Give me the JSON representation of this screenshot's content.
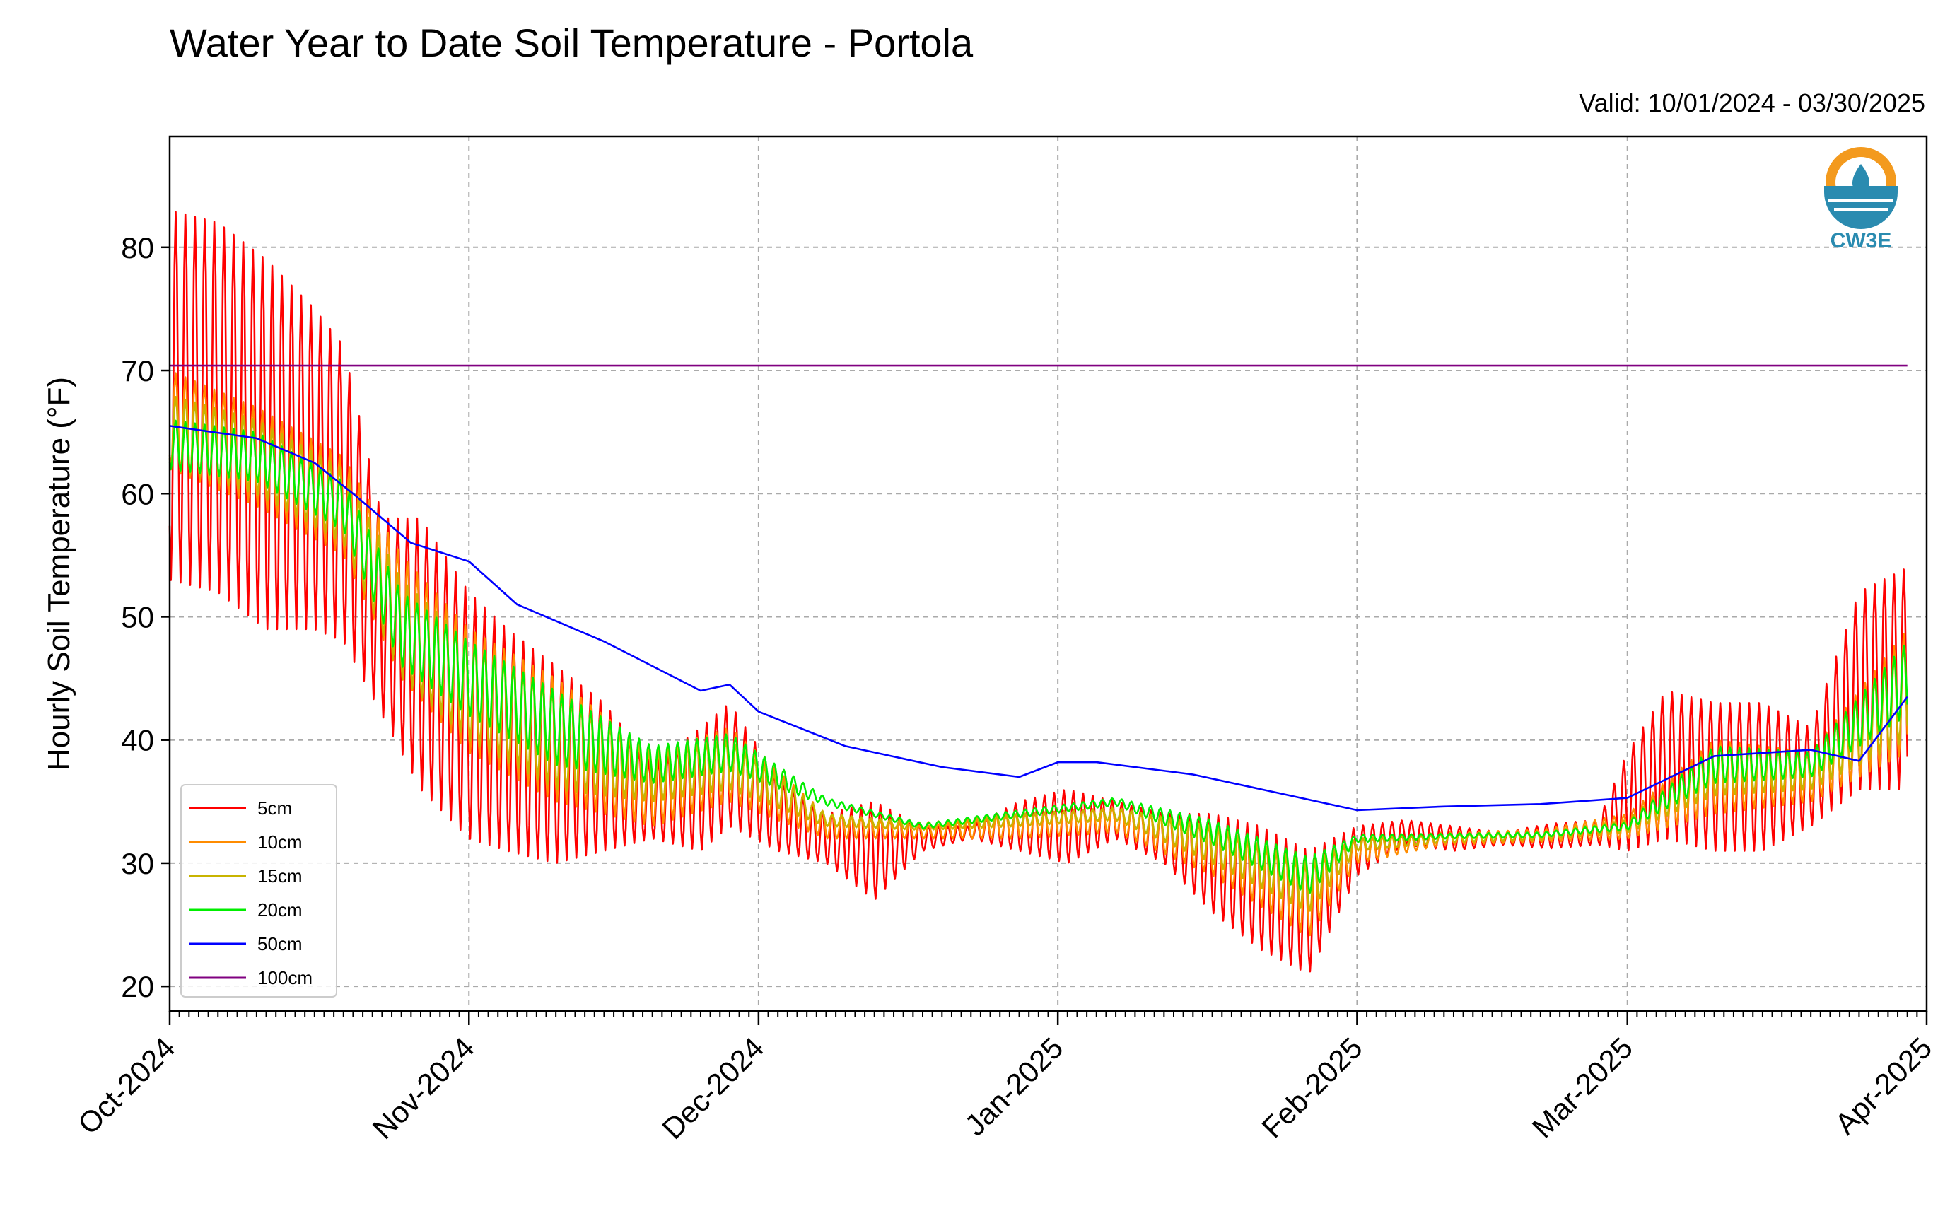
{
  "chart_data": {
    "type": "line",
    "title": "Water Year to Date Soil Temperature - Portola",
    "valid_text": "Valid: 10/01/2024 - 03/30/2025",
    "ylabel": "Hourly Soil Temperature (°F)",
    "xlabel": "",
    "logo_text": "CW3E",
    "ylim": [
      18,
      89
    ],
    "xlim": [
      "2024-10-01",
      "2025-04-01"
    ],
    "grid": true,
    "legend_position": "lower-left",
    "yticks": [
      20,
      30,
      40,
      50,
      60,
      70,
      80
    ],
    "xticks": [
      {
        "date": "2024-10-01",
        "label": "Oct-2024"
      },
      {
        "date": "2024-11-01",
        "label": "Nov-2024"
      },
      {
        "date": "2024-12-01",
        "label": "Dec-2024"
      },
      {
        "date": "2025-01-01",
        "label": "Jan-2025"
      },
      {
        "date": "2025-02-01",
        "label": "Feb-2025"
      },
      {
        "date": "2025-03-01",
        "label": "Mar-2025"
      },
      {
        "date": "2025-04-01",
        "label": "Apr-2025"
      }
    ],
    "series": [
      {
        "name": "5cm",
        "color": "#ff0000",
        "diurnal": true,
        "x": [
          "2024-10-01",
          "2024-10-06",
          "2024-10-11",
          "2024-10-16",
          "2024-10-19",
          "2024-10-23",
          "2024-10-27",
          "2024-11-01",
          "2024-11-05",
          "2024-11-10",
          "2024-11-15",
          "2024-11-20",
          "2024-11-25",
          "2024-11-28",
          "2024-12-03",
          "2024-12-08",
          "2024-12-13",
          "2024-12-18",
          "2024-12-23",
          "2024-12-28",
          "2025-01-02",
          "2025-01-07",
          "2025-01-12",
          "2025-01-17",
          "2025-01-22",
          "2025-01-27",
          "2025-02-01",
          "2025-02-06",
          "2025-02-11",
          "2025-02-16",
          "2025-02-21",
          "2025-02-26",
          "2025-03-01",
          "2025-03-05",
          "2025-03-10",
          "2025-03-15",
          "2025-03-20",
          "2025-03-25",
          "2025-03-30"
        ],
        "mean": [
          68,
          67,
          64,
          62,
          60,
          50,
          47,
          42,
          40,
          38,
          37,
          35,
          36,
          38,
          34,
          32,
          31,
          32,
          32.5,
          33,
          33,
          33.5,
          32,
          30,
          28,
          26,
          31,
          32.5,
          32,
          32,
          32.2,
          32.5,
          35,
          38,
          37,
          37,
          37,
          44,
          45
        ],
        "amp": [
          15,
          15,
          15,
          13,
          12,
          8,
          11,
          10,
          9,
          8,
          6,
          3,
          5,
          5,
          3,
          2,
          4,
          1,
          0.5,
          2,
          3,
          1.5,
          2,
          4,
          5,
          5,
          2,
          1,
          1,
          0.5,
          1,
          1,
          4,
          6,
          6,
          6,
          4,
          8,
          9
        ]
      },
      {
        "name": "10cm",
        "color": "#ff8c00",
        "diurnal": true,
        "x": [
          "2024-10-01",
          "2024-10-10",
          "2024-10-19",
          "2024-10-25",
          "2024-11-01",
          "2024-11-10",
          "2024-11-20",
          "2024-11-28",
          "2024-12-08",
          "2024-12-18",
          "2024-12-28",
          "2025-01-07",
          "2025-01-17",
          "2025-01-27",
          "2025-02-01",
          "2025-02-10",
          "2025-02-20",
          "2025-03-01",
          "2025-03-10",
          "2025-03-20",
          "2025-03-30"
        ],
        "mean": [
          66,
          63,
          59,
          50,
          44,
          40,
          36,
          38,
          33,
          32.5,
          33,
          33.5,
          31,
          27,
          31,
          32,
          32.2,
          33,
          37,
          37,
          44
        ],
        "amp": [
          4,
          4,
          4,
          5,
          5,
          5,
          3,
          3,
          1,
          0.5,
          1,
          1,
          2,
          3,
          1,
          0.5,
          0.5,
          1,
          3,
          2,
          5
        ]
      },
      {
        "name": "15cm",
        "color": "#c8b400",
        "diurnal": true,
        "x": [
          "2024-10-01",
          "2024-10-10",
          "2024-10-19",
          "2024-10-25",
          "2024-11-01",
          "2024-11-10",
          "2024-11-20",
          "2024-11-28",
          "2024-12-08",
          "2024-12-18",
          "2024-12-28",
          "2025-01-07",
          "2025-01-17",
          "2025-01-27",
          "2025-02-01",
          "2025-02-10",
          "2025-02-20",
          "2025-03-01",
          "2025-03-10",
          "2025-03-20",
          "2025-03-30"
        ],
        "mean": [
          65,
          63,
          59,
          49,
          44,
          40,
          37,
          38,
          33.5,
          33,
          33.5,
          34,
          31.5,
          28,
          31.5,
          32,
          32.2,
          33,
          37.5,
          37.5,
          44
        ],
        "amp": [
          3,
          3,
          3,
          4,
          4,
          4,
          2,
          2,
          0.5,
          0.3,
          0.5,
          0.5,
          1.5,
          2,
          0.5,
          0.3,
          0.3,
          0.5,
          2,
          1.5,
          4
        ]
      },
      {
        "name": "20cm",
        "color": "#00ee00",
        "diurnal": true,
        "x": [
          "2024-10-01",
          "2024-10-10",
          "2024-10-19",
          "2024-10-25",
          "2024-11-01",
          "2024-11-10",
          "2024-11-20",
          "2024-11-28",
          "2024-12-08",
          "2024-12-18",
          "2024-12-28",
          "2025-01-07",
          "2025-01-17",
          "2025-01-27",
          "2025-02-01",
          "2025-02-10",
          "2025-02-20",
          "2025-03-01",
          "2025-03-10",
          "2025-03-20",
          "2025-03-30"
        ],
        "mean": [
          64,
          63,
          59,
          49,
          45,
          41,
          38,
          39,
          35,
          33,
          34,
          35,
          32.5,
          29,
          32,
          32.2,
          32.3,
          33,
          38,
          38,
          45
        ],
        "amp": [
          2,
          2,
          2,
          3,
          3,
          3,
          1.5,
          1.5,
          0.3,
          0.2,
          0.3,
          0.3,
          1,
          1.5,
          0.3,
          0.2,
          0.2,
          0.3,
          1.5,
          1,
          3
        ]
      },
      {
        "name": "50cm",
        "color": "#0000ff",
        "diurnal": false,
        "x": [
          "2024-10-01",
          "2024-10-10",
          "2024-10-16",
          "2024-10-20",
          "2024-10-26",
          "2024-11-01",
          "2024-11-06",
          "2024-11-15",
          "2024-11-25",
          "2024-11-28",
          "2024-12-01",
          "2024-12-10",
          "2024-12-20",
          "2024-12-28",
          "2025-01-01",
          "2025-01-05",
          "2025-01-15",
          "2025-01-25",
          "2025-02-01",
          "2025-02-10",
          "2025-02-20",
          "2025-03-01",
          "2025-03-10",
          "2025-03-20",
          "2025-03-25",
          "2025-03-30"
        ],
        "mean": [
          65.5,
          64.5,
          62.5,
          60,
          56,
          54.5,
          51,
          48,
          44,
          44.5,
          42.3,
          39.5,
          37.8,
          37,
          38.2,
          38.2,
          37.2,
          35.5,
          34.3,
          34.6,
          34.8,
          35.3,
          38.7,
          39.2,
          38.3,
          43.5
        ],
        "amp": []
      },
      {
        "name": "100cm",
        "color": "#800080",
        "diurnal": false,
        "x": [
          "2024-10-01",
          "2025-03-30"
        ],
        "mean": [
          70.4,
          70.4
        ],
        "amp": []
      }
    ]
  }
}
